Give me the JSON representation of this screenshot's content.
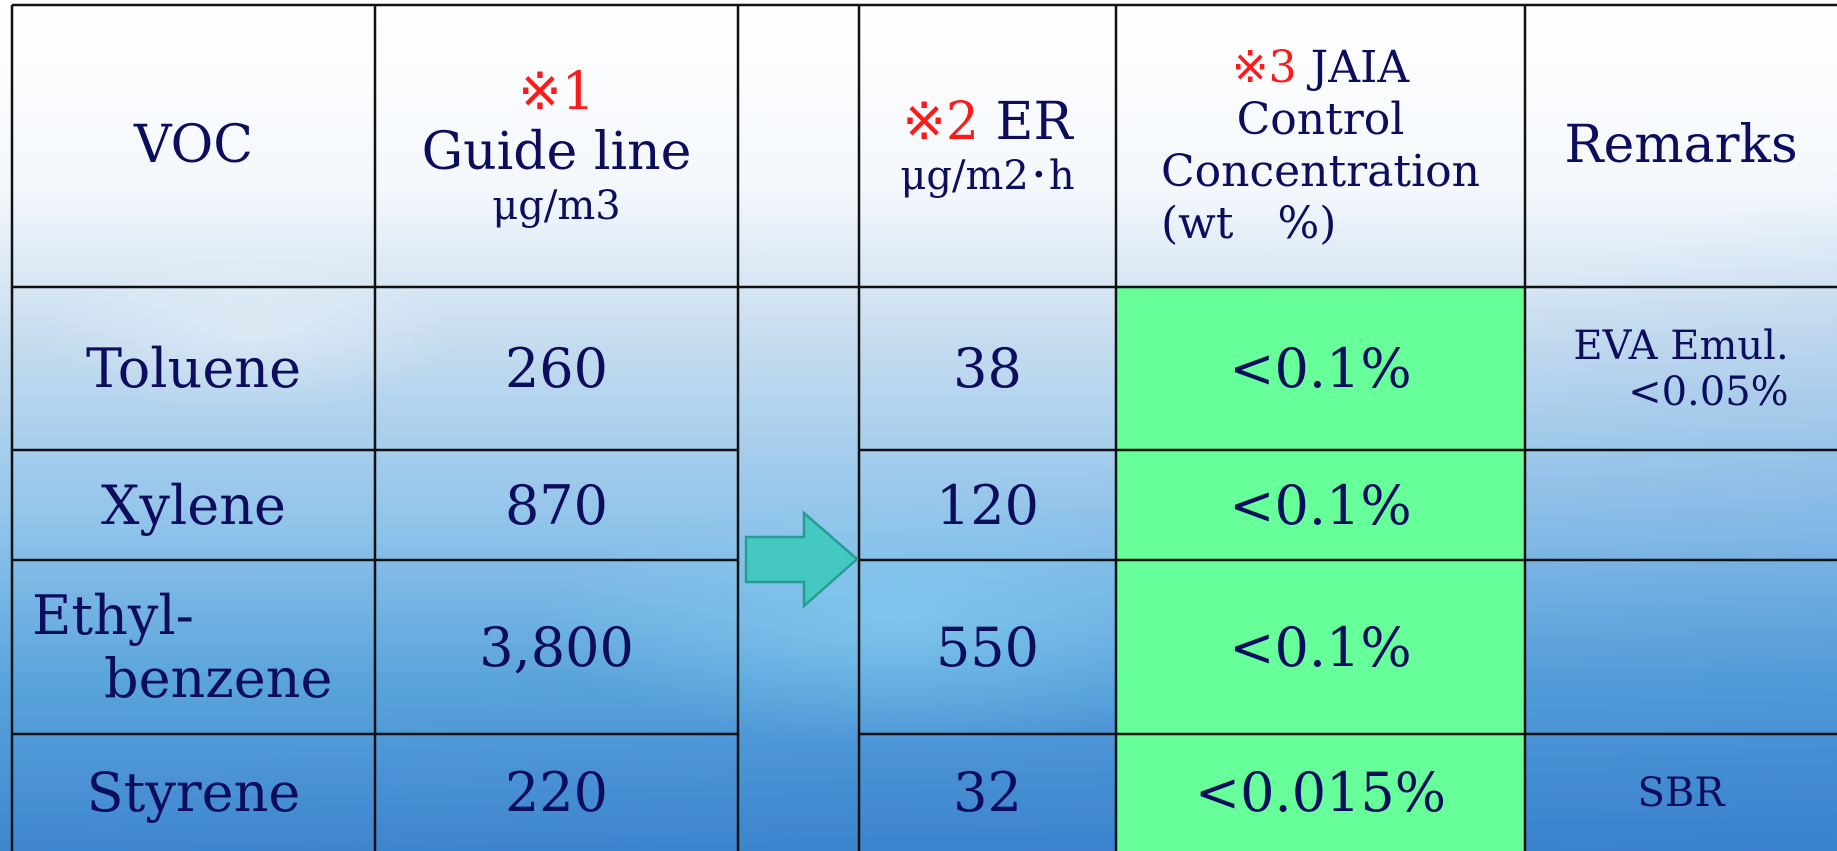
{
  "header": {
    "voc": "VOC",
    "guideline": {
      "note": "※1",
      "title": "Guide line",
      "unit": "μg/m3"
    },
    "er": {
      "note": "※2",
      "title": "ER",
      "unit": "μg/m2･h"
    },
    "jaia": {
      "note": "※3",
      "title": "JAIA",
      "line2": "Control",
      "line3": "Concentration",
      "line4": "(wt　%)"
    },
    "remarks": "Remarks"
  },
  "rows": [
    {
      "voc": "Toluene",
      "guideline": "260",
      "er": "38",
      "jaia": "<0.1%",
      "remark_line1": "EVA Emul.",
      "remark_line2": "<0.05%"
    },
    {
      "voc": "Xylene",
      "guideline": "870",
      "er": "120",
      "jaia": "<0.1%",
      "remark_line1": "",
      "remark_line2": ""
    },
    {
      "voc_line1": "Ethyl-",
      "voc_line2": "benzene",
      "guideline": "3,800",
      "er": "550",
      "jaia": "<0.1%",
      "remark_line1": "",
      "remark_line2": ""
    },
    {
      "voc": "Styrene",
      "guideline": "220",
      "er": "32",
      "jaia": "<0.015%",
      "remark_line1": "SBR",
      "remark_line2": ""
    }
  ],
  "colors": {
    "text": "#0d0d5e",
    "note_red": "#ff1a1a",
    "highlight_green": "#66ff99",
    "arrow_fill": "#45c8c2",
    "arrow_stroke": "#2a9a94"
  },
  "arrow_icon": "right-arrow-icon"
}
